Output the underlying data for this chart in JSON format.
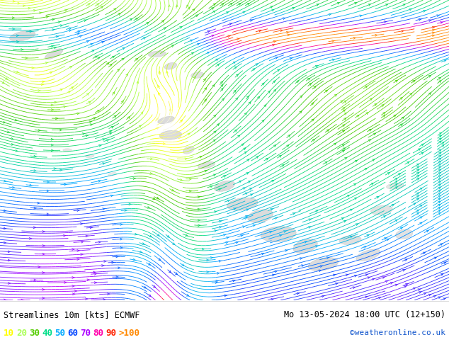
{
  "title_left": "Streamlines 10m [kts] ECMWF",
  "title_right": "Mo 13-05-2024 18:00 UTC (12+150)",
  "credit": "©weatheronline.co.uk",
  "legend_values": [
    "10",
    "20",
    "30",
    "40",
    "50",
    "60",
    "70",
    "80",
    "90",
    ">100"
  ],
  "legend_colors": [
    "#ffff00",
    "#aaff55",
    "#55cc00",
    "#00dd88",
    "#00aaff",
    "#0044ff",
    "#aa00ff",
    "#ff00aa",
    "#ff2200",
    "#ff8800"
  ],
  "bg_color": "#ffffff",
  "map_bg": "#ccffcc",
  "bottom_bg": "#ffffff",
  "figsize": [
    6.34,
    4.9
  ],
  "dpi": 100,
  "font_size_title": 8.5,
  "font_size_legend": 9,
  "font_size_credit": 8,
  "stream_density": 3.5,
  "stream_lw": 0.6,
  "arrow_size": 0.5
}
